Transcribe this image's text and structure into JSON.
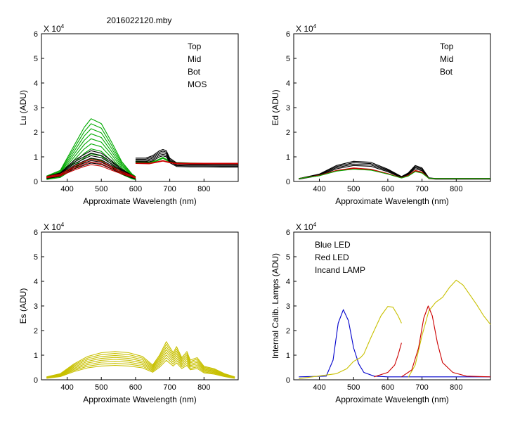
{
  "figure_title": "2016022120.mby",
  "colors": {
    "black": "#000000",
    "red": "#cc0000",
    "green": "#00aa00",
    "blue": "#0000cc",
    "olive": "#c8c000"
  },
  "chart_data": [
    {
      "type": "line",
      "panel": "top-left",
      "ylabel": "Lu (ADU)",
      "xlabel": "Approximate Wavelength (nm)",
      "y_multiplier": "X 10",
      "y_exponent": "4",
      "xlim": [
        325,
        900
      ],
      "ylim": [
        0,
        6
      ],
      "xticks": [
        400,
        500,
        600,
        700,
        800
      ],
      "yticks": [
        0,
        1,
        2,
        3,
        4,
        5,
        6
      ],
      "legend": [
        {
          "label": "Top",
          "color": "#000000"
        },
        {
          "label": "Mid",
          "color": "#cc0000"
        },
        {
          "label": "Bot",
          "color": "#00aa00"
        },
        {
          "label": "MOS",
          "color": "#0000cc"
        }
      ],
      "series": [
        {
          "name": "Bot",
          "color": "#00aa00",
          "segments": [
            {
              "x": [
                340,
                380,
                420,
                450,
                470,
                500,
                530,
                560,
                590,
                600
              ],
              "y": [
                0.22,
                0.45,
                1.45,
                2.2,
                2.55,
                2.35,
                1.6,
                0.8,
                0.3,
                0.2
              ],
              "copies": [
                1.0,
                0.92,
                0.84,
                0.76,
                0.68,
                0.6,
                0.52,
                0.44,
                0.36
              ]
            },
            {
              "x": [
                600,
                640,
                660,
                680,
                700,
                720,
                760,
                800,
                850,
                900
              ],
              "y": [
                0.82,
                0.8,
                0.85,
                0.98,
                0.82,
                0.77,
                0.75,
                0.74,
                0.74,
                0.74
              ],
              "copies": [
                1.0,
                0.98,
                0.96
              ]
            }
          ]
        },
        {
          "name": "Top",
          "color": "#000000",
          "segments": [
            {
              "x": [
                340,
                380,
                420,
                450,
                470,
                500,
                530,
                560,
                590,
                600
              ],
              "y": [
                0.2,
                0.35,
                0.85,
                1.1,
                1.25,
                1.15,
                0.85,
                0.5,
                0.25,
                0.18
              ],
              "copies": [
                1.0,
                0.92,
                0.84,
                0.76,
                0.68,
                0.6
              ]
            },
            {
              "x": [
                600,
                630,
                650,
                670,
                680,
                690,
                700,
                720,
                760,
                800,
                850,
                900
              ],
              "y": [
                0.95,
                0.95,
                1.05,
                1.25,
                1.3,
                1.25,
                0.95,
                0.76,
                0.74,
                0.74,
                0.73,
                0.73
              ],
              "copies": [
                1.0,
                0.95,
                0.9,
                0.85,
                0.8
              ]
            }
          ]
        },
        {
          "name": "Mid",
          "color": "#cc0000",
          "segments": [
            {
              "x": [
                340,
                380,
                420,
                450,
                470,
                500,
                530,
                560,
                590,
                600
              ],
              "y": [
                0.2,
                0.3,
                0.6,
                0.8,
                0.9,
                0.82,
                0.6,
                0.4,
                0.24,
                0.18
              ],
              "copies": [
                1.0,
                0.88,
                0.76
              ]
            },
            {
              "x": [
                600,
                640,
                680,
                700,
                720,
                760,
                800,
                900
              ],
              "y": [
                0.75,
                0.74,
                0.85,
                0.78,
                0.74,
                0.74,
                0.74,
                0.74
              ],
              "copies": [
                1.0,
                0.97
              ]
            }
          ]
        }
      ]
    },
    {
      "type": "line",
      "panel": "top-right",
      "ylabel": "Ed (ADU)",
      "xlabel": "Approximate Wavelength (nm)",
      "y_multiplier": "X 10",
      "y_exponent": "4",
      "xlim": [
        325,
        900
      ],
      "ylim": [
        0,
        6
      ],
      "xticks": [
        400,
        500,
        600,
        700,
        800
      ],
      "yticks": [
        0,
        1,
        2,
        3,
        4,
        5,
        6
      ],
      "legend": [
        {
          "label": "Top",
          "color": "#000000"
        },
        {
          "label": "Mid",
          "color": "#cc0000"
        },
        {
          "label": "Bot",
          "color": "#00aa00"
        }
      ],
      "series": [
        {
          "name": "Top",
          "color": "#000000",
          "segments": [
            {
              "x": [
                340,
                400,
                450,
                500,
                550,
                600,
                640,
                660,
                680,
                700,
                720,
                740,
                800,
                900
              ],
              "y": [
                0.12,
                0.3,
                0.65,
                0.82,
                0.78,
                0.5,
                0.2,
                0.35,
                0.65,
                0.55,
                0.15,
                0.12,
                0.12,
                0.12
              ],
              "copies": [
                1.0,
                0.93,
                0.86,
                0.79
              ]
            }
          ]
        },
        {
          "name": "Mid",
          "color": "#cc0000",
          "segments": [
            {
              "x": [
                340,
                400,
                450,
                500,
                550,
                600,
                640,
                660,
                680,
                700,
                720,
                740,
                800,
                900
              ],
              "y": [
                0.12,
                0.25,
                0.45,
                0.55,
                0.5,
                0.32,
                0.15,
                0.25,
                0.45,
                0.38,
                0.13,
                0.12,
                0.12,
                0.12
              ],
              "copies": [
                1.0,
                0.95
              ]
            }
          ]
        },
        {
          "name": "Bot",
          "color": "#00aa00",
          "segments": [
            {
              "x": [
                340,
                400,
                450,
                500,
                550,
                600,
                640,
                660,
                680,
                700,
                720,
                740,
                800,
                900
              ],
              "y": [
                0.12,
                0.23,
                0.42,
                0.5,
                0.46,
                0.3,
                0.14,
                0.22,
                0.4,
                0.34,
                0.13,
                0.12,
                0.12,
                0.12
              ],
              "copies": [
                1.0
              ]
            }
          ]
        }
      ]
    },
    {
      "type": "line",
      "panel": "bottom-left",
      "ylabel": "Es (ADU)",
      "xlabel": "Approximate Wavelength (nm)",
      "y_multiplier": "X 10",
      "y_exponent": "4",
      "xlim": [
        325,
        900
      ],
      "ylim": [
        0,
        6
      ],
      "xticks": [
        400,
        500,
        600,
        700,
        800
      ],
      "yticks": [
        0,
        1,
        2,
        3,
        4,
        5,
        6
      ],
      "legend": [],
      "series": [
        {
          "name": "Es",
          "color": "#c8c000",
          "segments": [
            {
              "x": [
                340,
                380,
                420,
                460,
                500,
                540,
                580,
                620,
                650,
                670,
                690,
                710,
                720,
                735,
                750,
                760,
                780,
                800,
                830,
                860,
                890
              ],
              "y": [
                0.12,
                0.25,
                0.65,
                0.95,
                1.1,
                1.15,
                1.1,
                0.95,
                0.6,
                1.0,
                1.55,
                1.1,
                1.35,
                0.9,
                1.15,
                0.8,
                0.9,
                0.55,
                0.45,
                0.25,
                0.12
              ],
              "copies": [
                1.0,
                0.93,
                0.86,
                0.79,
                0.72,
                0.65,
                0.58,
                0.51
              ]
            }
          ]
        }
      ]
    },
    {
      "type": "line",
      "panel": "bottom-right",
      "ylabel": "Internal Calib. Lamps (ADU)",
      "xlabel": "Approximate Wavelength (nm)",
      "y_multiplier": "X 10",
      "y_exponent": "4",
      "xlim": [
        325,
        900
      ],
      "ylim": [
        0,
        6
      ],
      "xticks": [
        400,
        500,
        600,
        700,
        800
      ],
      "yticks": [
        0,
        1,
        2,
        3,
        4,
        5,
        6
      ],
      "legend": [
        {
          "label": "Blue LED",
          "color": "#0000cc"
        },
        {
          "label": "Red LED",
          "color": "#cc0000"
        },
        {
          "label": "Incand LAMP",
          "color": "#c8c000"
        }
      ],
      "series": [
        {
          "name": "Blue LED",
          "color": "#0000cc",
          "segments": [
            {
              "x": [
                340,
                420,
                440,
                455,
                470,
                485,
                500,
                515,
                530,
                560,
                600,
                700,
                900
              ],
              "y": [
                0.12,
                0.15,
                0.8,
                2.3,
                2.85,
                2.4,
                1.3,
                0.65,
                0.3,
                0.15,
                0.12,
                0.12,
                0.12
              ],
              "copies": [
                1.0
              ]
            }
          ]
        },
        {
          "name": "Incand LAMP",
          "color": "#c8c000",
          "segments": [
            {
              "x": [
                340,
                450,
                480,
                500,
                520,
                530,
                550,
                580,
                600,
                615,
                630,
                640
              ],
              "y": [
                0.05,
                0.25,
                0.45,
                0.75,
                0.9,
                1.05,
                1.7,
                2.6,
                2.98,
                2.95,
                2.6,
                2.3
              ],
              "copies": [
                1.0
              ]
            },
            {
              "x": [
                660,
                680,
                700,
                720,
                740,
                760,
                780,
                800,
                820,
                840,
                860,
                880,
                900
              ],
              "y": [
                0.1,
                0.6,
                1.8,
                2.8,
                3.15,
                3.35,
                3.75,
                4.05,
                3.85,
                3.45,
                3.05,
                2.6,
                2.25
              ],
              "copies": [
                1.0
              ]
            }
          ]
        },
        {
          "name": "Red LED",
          "color": "#cc0000",
          "segments": [
            {
              "x": [
                560,
                600,
                620,
                630,
                640
              ],
              "y": [
                0.12,
                0.3,
                0.6,
                1.0,
                1.5
              ],
              "copies": [
                1.0
              ]
            },
            {
              "x": [
                640,
                670,
                690,
                705,
                718,
                730,
                745,
                760,
                790,
                830,
                900
              ],
              "y": [
                0.12,
                0.4,
                1.3,
                2.5,
                3.0,
                2.6,
                1.5,
                0.7,
                0.3,
                0.15,
                0.12
              ],
              "copies": [
                1.0
              ]
            }
          ]
        }
      ]
    }
  ]
}
